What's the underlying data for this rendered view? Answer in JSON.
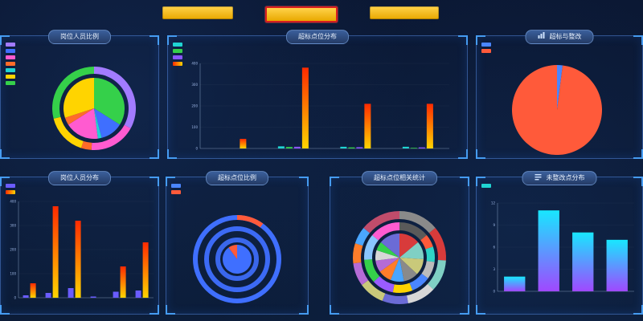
{
  "buttons": {
    "b1": "",
    "b2": "",
    "b3": ""
  },
  "panels": {
    "p1": "岗位人员比例",
    "p2": "超标点位分布",
    "p3": "超标与整改",
    "p4": "岗位人员分布",
    "p5": "超标点位比例",
    "p6": "超标点位相关统计",
    "p7": "未整改点分布"
  },
  "legends": {
    "p1": [
      "",
      "",
      "",
      "",
      "",
      "",
      ""
    ],
    "p2": [
      "",
      "",
      "",
      ""
    ],
    "p3": [
      "",
      ""
    ],
    "p4": [
      "",
      ""
    ],
    "p5": [
      "",
      ""
    ],
    "p7": [
      ""
    ]
  },
  "annotations": {
    "p3_top": "",
    "p3_bottom": ""
  },
  "colors": {
    "purple": "#a27bff",
    "blue": "#3f6fff",
    "teal": "#20d4d2",
    "pink": "#ff5bd0",
    "yellow": "#ffd400",
    "green": "#35d04a",
    "orange": "#ff6b2a",
    "red": "#ff5a3a"
  },
  "chart_data": [
    {
      "type": "pie",
      "labels": [
        "",
        "",
        "",
        "",
        "",
        "",
        ""
      ],
      "inner": [
        {
          "label": "",
          "value": 34
        },
        {
          "label": "",
          "value": 12
        },
        {
          "label": "",
          "value": 2
        },
        {
          "label": "",
          "value": 18
        },
        {
          "label": "",
          "value": 4
        },
        {
          "label": "",
          "value": 30
        }
      ],
      "outer": [
        {
          "label": "",
          "value": 33
        },
        {
          "label": "",
          "value": 18
        },
        {
          "label": "",
          "value": 4
        },
        {
          "label": "",
          "value": 16
        },
        {
          "label": "",
          "value": 29
        }
      ]
    },
    {
      "type": "bar",
      "categories": [
        "",
        "",
        "",
        ""
      ],
      "series": [
        {
          "name": "",
          "values": [
            0,
            10,
            8,
            8
          ]
        },
        {
          "name": "",
          "values": [
            0,
            7,
            5,
            3
          ]
        },
        {
          "name": "",
          "values": [
            0,
            8,
            6,
            5
          ]
        },
        {
          "name": "",
          "values": [
            45,
            380,
            210,
            210
          ]
        }
      ],
      "ylim": [
        0,
        400
      ]
    },
    {
      "type": "pie",
      "labels": [
        "",
        ""
      ],
      "values": [
        2,
        98
      ]
    },
    {
      "type": "bar",
      "categories": [
        "",
        "",
        "",
        "",
        "",
        ""
      ],
      "series": [
        {
          "name": "",
          "values": [
            10,
            20,
            40,
            5,
            25,
            30
          ]
        },
        {
          "name": "",
          "values": [
            60,
            380,
            320,
            0,
            130,
            230
          ]
        }
      ],
      "ylim": [
        0,
        400
      ]
    },
    {
      "type": "pie",
      "labels": [
        "",
        ""
      ],
      "values": [
        10,
        90
      ]
    },
    {
      "type": "pie",
      "values": [
        14,
        12,
        11,
        10,
        9,
        9,
        8,
        7,
        6,
        14
      ]
    },
    {
      "type": "bar",
      "categories": [
        "",
        "",
        "",
        ""
      ],
      "values": [
        2,
        11,
        8,
        7
      ],
      "ylim": [
        0,
        12
      ]
    }
  ]
}
